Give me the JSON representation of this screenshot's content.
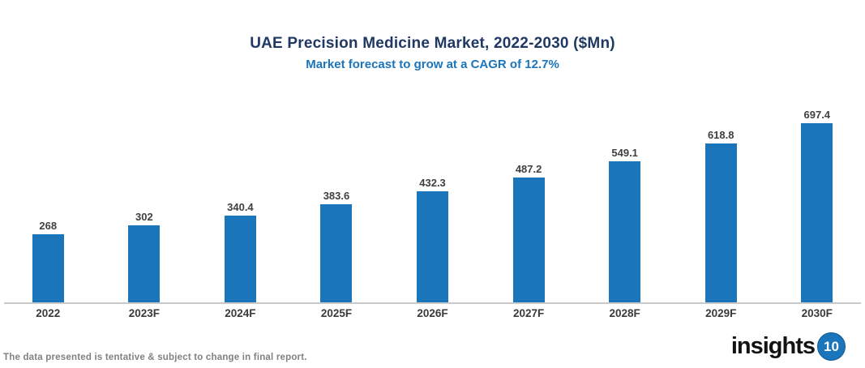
{
  "header": {
    "title": "UAE Precision Medicine Market, 2022-2030 ($Mn)",
    "subtitle": "Market forecast to grow at a CAGR of 12.7%"
  },
  "chart_data": {
    "type": "bar",
    "title": "UAE Precision Medicine Market, 2022-2030 ($Mn)",
    "subtitle": "Market forecast to grow at a CAGR of 12.7%",
    "categories": [
      "2022",
      "2023F",
      "2024F",
      "2025F",
      "2026F",
      "2027F",
      "2028F",
      "2029F",
      "2030F"
    ],
    "values": [
      268,
      302,
      340.4,
      383.6,
      432.3,
      487.2,
      549.1,
      618.8,
      697.4
    ],
    "value_labels": [
      "268",
      "302",
      "340.4",
      "383.6",
      "432.3",
      "487.2",
      "549.1",
      "618.8",
      "697.4"
    ],
    "xlabel": "",
    "ylabel": "",
    "ylim": [
      0,
      740
    ],
    "grid": false,
    "legend": false,
    "data_labels_position": "above-bars"
  },
  "footer": {
    "disclaimer": "The data presented is tentative & subject to change in final report.",
    "logo_text": "insights",
    "logo_badge": "10"
  },
  "colors": {
    "title": "#1F3864",
    "subtitle": "#1B75BB",
    "bar": "#1B75BB",
    "axis_line": "#C9C9C9",
    "value_label": "#3F3F3F",
    "x_label": "#3A3A3A",
    "footer_text": "#818181",
    "logo_badge_bg": "#1B75BB"
  }
}
